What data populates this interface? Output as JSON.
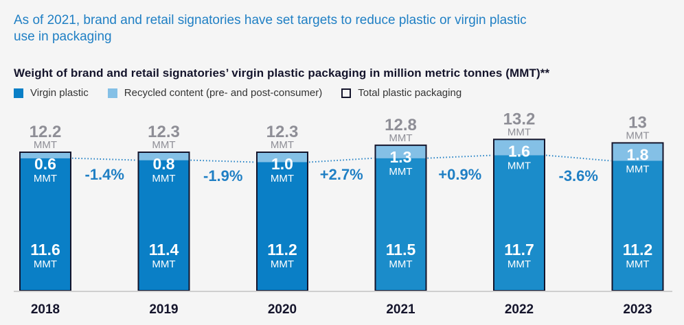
{
  "headline": "As of 2021, brand and retail signatories have set targets to reduce plastic or virgin plastic use in packaging",
  "chart_data": {
    "type": "bar",
    "stacked": true,
    "title": "Weight of brand and retail signatories’ virgin plastic packaging in million metric tonnes (MMT)**",
    "unit": "MMT",
    "categories": [
      "2018",
      "2019",
      "2020",
      "2021",
      "2022",
      "2023"
    ],
    "series": [
      {
        "name": "Virgin plastic",
        "color": "#0a7fc6",
        "values": [
          11.6,
          11.4,
          11.2,
          11.5,
          11.7,
          11.2
        ]
      },
      {
        "name": "Recycled content (pre- and post-consumer)",
        "color": "#84c0e6",
        "values": [
          0.6,
          0.8,
          1.0,
          1.3,
          1.6,
          1.8
        ]
      }
    ],
    "totals": {
      "name": "Total plastic packaging",
      "values": [
        "12.2",
        "12.3",
        "12.3",
        "12.8",
        "13.2",
        "13"
      ]
    },
    "changes": [
      "-1.4%",
      "-1.9%",
      "+2.7%",
      "+0.9%",
      "-3.6%"
    ],
    "virgin_label_values": [
      "11.6",
      "11.4",
      "11.2",
      "11.5",
      "11.7",
      "11.2"
    ],
    "recycled_label_values": [
      "0.6",
      "0.8",
      "1.0",
      "1.3",
      "1.6",
      "1.8"
    ],
    "legend_position": "top-left",
    "grid": false,
    "xlabel": "",
    "ylabel": "",
    "colors": {
      "virgin_early": "#0a7fc6",
      "virgin_late": "#1b8cca",
      "recycled": "#84c0e6",
      "outline": "#14142b",
      "trend_line": "#1f7fc4",
      "total_label": "#8e8e96",
      "change_label": "#1f7fc4"
    }
  },
  "legend": [
    {
      "label": "Virgin plastic",
      "swatch": "virgin"
    },
    {
      "label": "Recycled content (pre- and post-consumer)",
      "swatch": "recycled"
    },
    {
      "label": "Total plastic packaging",
      "swatch": "outline"
    }
  ]
}
